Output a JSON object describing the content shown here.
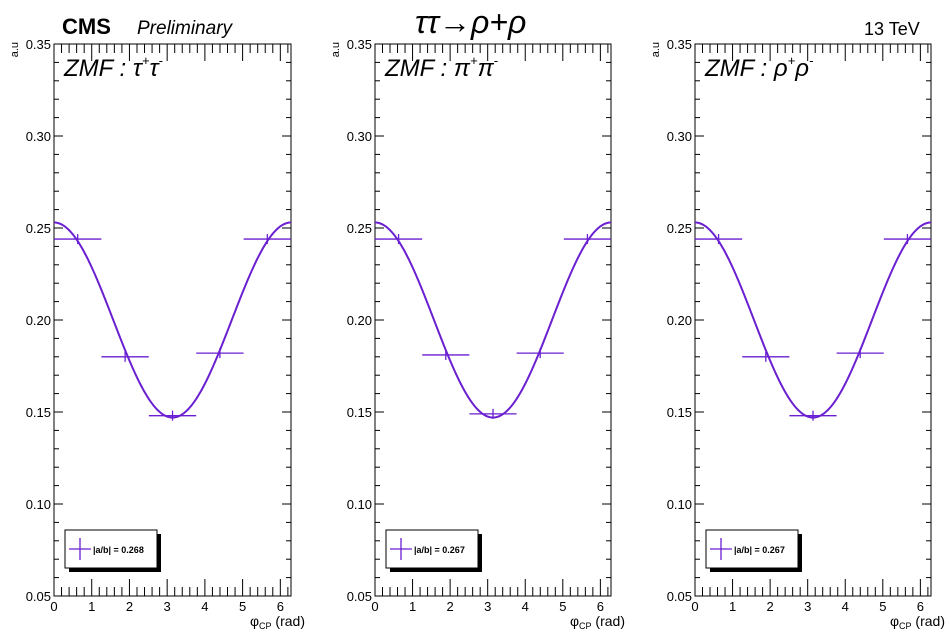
{
  "header": {
    "experiment": "CMS",
    "status": "Preliminary",
    "process": "ττ→ρ+ρ",
    "energy": "13 TeV"
  },
  "colors": {
    "curve": "#6a1fd1",
    "axis": "#000000",
    "background": "#ffffff"
  },
  "chart_data": [
    {
      "type": "line",
      "panel_label": {
        "base": "ZMF : τ",
        "p1": "+",
        "mid": "τ",
        "p2": "-"
      },
      "xlabel": {
        "base": "φ",
        "sub": "CP",
        "unit": " (rad)"
      },
      "ylabel": "a.u",
      "xlim": [
        0,
        6.283
      ],
      "ylim": [
        0.05,
        0.35
      ],
      "xticks": [
        0,
        1,
        2,
        3,
        4,
        5,
        6
      ],
      "yticks": [
        "0.05",
        "0.10",
        "0.15",
        "0.20",
        "0.25",
        "0.30",
        "0.35"
      ],
      "legend": {
        "position": "bottom-left",
        "label": "|a/b| = 0.268"
      },
      "histogram": [
        {
          "x": 0.628,
          "xerr": 0.628,
          "y": 0.244
        },
        {
          "x": 1.885,
          "xerr": 0.628,
          "y": 0.18
        },
        {
          "x": 3.142,
          "xerr": 0.628,
          "y": 0.148
        },
        {
          "x": 4.398,
          "xerr": 0.628,
          "y": 0.182
        },
        {
          "x": 5.655,
          "xerr": 0.628,
          "y": 0.244
        }
      ],
      "fit": {
        "a": 0.2,
        "b": 0.053
      }
    },
    {
      "type": "line",
      "panel_label": {
        "base": "ZMF : π",
        "p1": "+",
        "mid": "π",
        "p2": "-"
      },
      "xlabel": {
        "base": "φ",
        "sub": "CP",
        "unit": " (rad)"
      },
      "ylabel": "a.u",
      "xlim": [
        0,
        6.283
      ],
      "ylim": [
        0.05,
        0.35
      ],
      "xticks": [
        0,
        1,
        2,
        3,
        4,
        5,
        6
      ],
      "yticks": [
        "0.05",
        "0.10",
        "0.15",
        "0.20",
        "0.25",
        "0.30",
        "0.35"
      ],
      "legend": {
        "position": "bottom-left",
        "label": "|a/b| = 0.267"
      },
      "histogram": [
        {
          "x": 0.628,
          "xerr": 0.628,
          "y": 0.244
        },
        {
          "x": 1.885,
          "xerr": 0.628,
          "y": 0.181
        },
        {
          "x": 3.142,
          "xerr": 0.628,
          "y": 0.149
        },
        {
          "x": 4.398,
          "xerr": 0.628,
          "y": 0.182
        },
        {
          "x": 5.655,
          "xerr": 0.628,
          "y": 0.244
        }
      ],
      "fit": {
        "a": 0.2,
        "b": 0.053
      }
    },
    {
      "type": "line",
      "panel_label": {
        "base": "ZMF : ρ",
        "p1": "+",
        "mid": "ρ",
        "p2": "-"
      },
      "xlabel": {
        "base": "φ",
        "sub": "CP",
        "unit": " (rad)"
      },
      "ylabel": "a.u",
      "xlim": [
        0,
        6.283
      ],
      "ylim": [
        0.05,
        0.35
      ],
      "xticks": [
        0,
        1,
        2,
        3,
        4,
        5,
        6
      ],
      "yticks": [
        "0.05",
        "0.10",
        "0.15",
        "0.20",
        "0.25",
        "0.30",
        "0.35"
      ],
      "legend": {
        "position": "bottom-left",
        "label": "|a/b| = 0.267"
      },
      "histogram": [
        {
          "x": 0.628,
          "xerr": 0.628,
          "y": 0.244
        },
        {
          "x": 1.885,
          "xerr": 0.628,
          "y": 0.18
        },
        {
          "x": 3.142,
          "xerr": 0.628,
          "y": 0.148
        },
        {
          "x": 4.398,
          "xerr": 0.628,
          "y": 0.182
        },
        {
          "x": 5.655,
          "xerr": 0.628,
          "y": 0.244
        }
      ],
      "fit": {
        "a": 0.2,
        "b": 0.053
      }
    }
  ]
}
